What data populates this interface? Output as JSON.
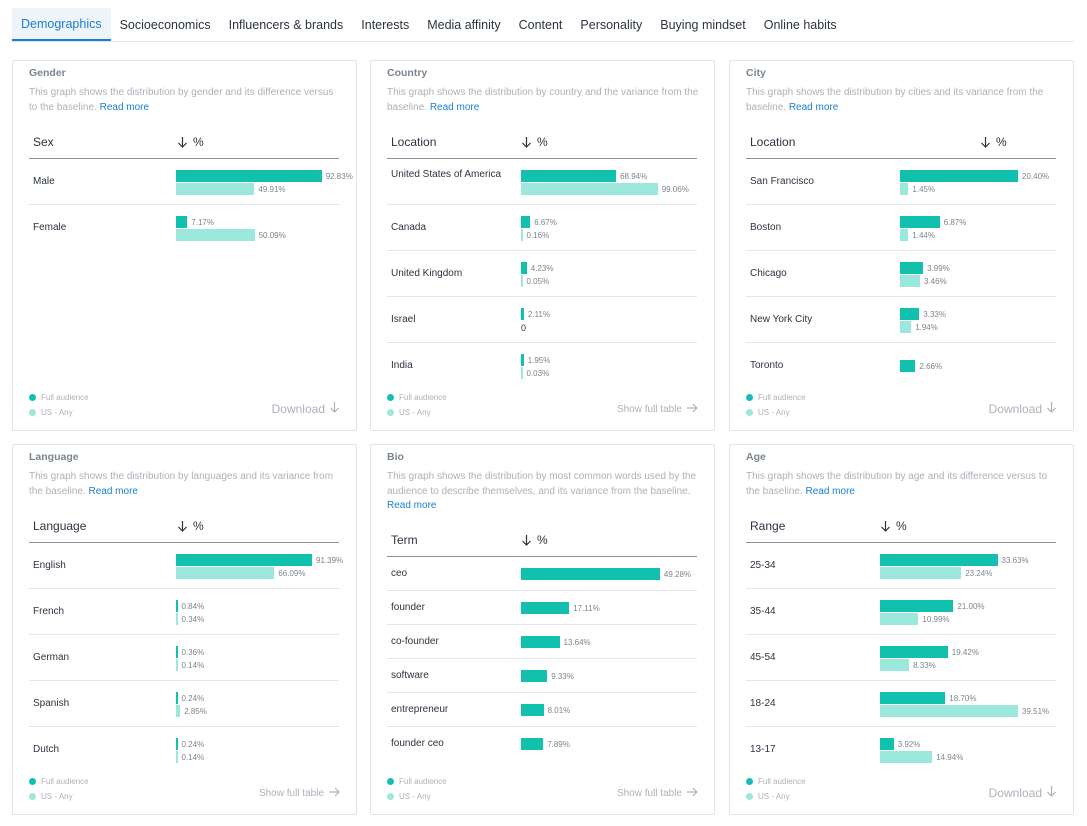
{
  "tabs": [
    "Demographics",
    "Socioeconomics",
    "Influencers & brands",
    "Interests",
    "Media affinity",
    "Content",
    "Personality",
    "Buying mindset",
    "Online habits"
  ],
  "legend": {
    "full": "Full audience",
    "baseline": "US - Any"
  },
  "actions": {
    "download": "Download",
    "show_full_table": "Show full table",
    "read_more": "Read more"
  },
  "colors": {
    "full": "#11c1ae",
    "baseline": "#9ce8dd",
    "accent": "#1a7fd4"
  },
  "cards": {
    "gender": {
      "title": "Gender",
      "description": "This graph shows the distribution by gender and its difference versus to the baseline.",
      "col_label": "Sex",
      "col_pct": "%",
      "rows": [
        {
          "label": "Male",
          "v1": "92.83%",
          "v2": "49.91%"
        },
        {
          "label": "Female",
          "v1": "7.17%",
          "v2": "50.09%"
        }
      ]
    },
    "country": {
      "title": "Country",
      "description": "This graph shows the distribution by country and the variance from the baseline.",
      "col_label": "Location",
      "col_pct": "%",
      "rows": [
        {
          "label": "United States of America",
          "v1": "68.94%",
          "v2": "99.06%"
        },
        {
          "label": "Canada",
          "v1": "6.67%",
          "v2": "0.16%"
        },
        {
          "label": "United Kingdom",
          "v1": "4.23%",
          "v2": "0.05%"
        },
        {
          "label": "Israel",
          "v1": "2.11%",
          "v2": "0"
        },
        {
          "label": "India",
          "v1": "1.95%",
          "v2": "0.03%"
        }
      ]
    },
    "city": {
      "title": "City",
      "description": "This graph shows the distribution by cities and its variance from the baseline.",
      "col_label": "Location",
      "col_pct": "%",
      "rows": [
        {
          "label": "San Francisco",
          "v1": "20.40%",
          "v2": "1.45%"
        },
        {
          "label": "Boston",
          "v1": "6.87%",
          "v2": "1.44%"
        },
        {
          "label": "Chicago",
          "v1": "3.99%",
          "v2": "3.46%"
        },
        {
          "label": "New York City",
          "v1": "3.33%",
          "v2": "1.94%"
        },
        {
          "label": "Toronto",
          "v1": "2.66%",
          "v2": ""
        }
      ]
    },
    "language": {
      "title": "Language",
      "description": "This graph shows the distribution by languages and its variance from the baseline.",
      "col_label": "Language",
      "col_pct": "%",
      "rows": [
        {
          "label": "English",
          "v1": "91.39%",
          "v2": "66.09%"
        },
        {
          "label": "French",
          "v1": "0.84%",
          "v2": "0.34%"
        },
        {
          "label": "German",
          "v1": "0.36%",
          "v2": "0.14%"
        },
        {
          "label": "Spanish",
          "v1": "0.24%",
          "v2": "2.85%"
        },
        {
          "label": "Dutch",
          "v1": "0.24%",
          "v2": "0.14%"
        }
      ]
    },
    "bio": {
      "title": "Bio",
      "description": "This graph shows the distribution by most common words used by the audience to describe themselves, and its variance from the baseline.",
      "col_label": "Term",
      "col_pct": "%",
      "rows": [
        {
          "label": "ceo",
          "v1": "49.28%",
          "v2": ""
        },
        {
          "label": "founder",
          "v1": "17.11%",
          "v2": ""
        },
        {
          "label": "co-founder",
          "v1": "13.64%",
          "v2": ""
        },
        {
          "label": "software",
          "v1": "9.33%",
          "v2": ""
        },
        {
          "label": "entrepreneur",
          "v1": "8.01%",
          "v2": ""
        },
        {
          "label": "founder ceo",
          "v1": "7.89%",
          "v2": ""
        }
      ]
    },
    "age": {
      "title": "Age",
      "description": "This graph shows the distribution by age and its difference versus to the baseline.",
      "col_label": "Range",
      "col_pct": "%",
      "rows": [
        {
          "label": "25-34",
          "v1": "33.63%",
          "v2": "23.24%"
        },
        {
          "label": "35-44",
          "v1": "21.00%",
          "v2": "10.99%"
        },
        {
          "label": "45-54",
          "v1": "19.42%",
          "v2": "8.33%"
        },
        {
          "label": "18-24",
          "v1": "18.70%",
          "v2": "39.51%"
        },
        {
          "label": "13-17",
          "v1": "3.92%",
          "v2": "14.94%"
        }
      ]
    }
  }
}
